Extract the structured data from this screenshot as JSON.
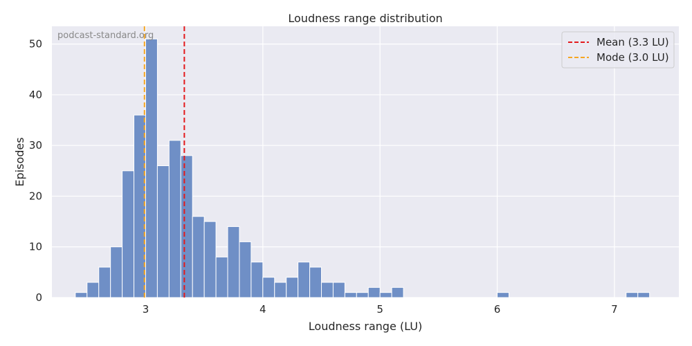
{
  "chart_data": {
    "type": "bar",
    "title": "Loudness range distribution",
    "xlabel": "Loudness range (LU)",
    "ylabel": "Episodes",
    "watermark": "podcast-standard.org",
    "xlim": [
      2.2,
      7.55
    ],
    "ylim": [
      0,
      53.5
    ],
    "xticks": [
      3,
      4,
      5,
      6,
      7
    ],
    "yticks": [
      0,
      10,
      20,
      30,
      40,
      50
    ],
    "grid": true,
    "legend_position": "top-right",
    "bin_width": 0.1,
    "bins": [
      {
        "x0": 2.4,
        "count": 1
      },
      {
        "x0": 2.5,
        "count": 3
      },
      {
        "x0": 2.6,
        "count": 6
      },
      {
        "x0": 2.7,
        "count": 10
      },
      {
        "x0": 2.8,
        "count": 25
      },
      {
        "x0": 2.9,
        "count": 36
      },
      {
        "x0": 3.0,
        "count": 51
      },
      {
        "x0": 3.1,
        "count": 26
      },
      {
        "x0": 3.2,
        "count": 31
      },
      {
        "x0": 3.3,
        "count": 28
      },
      {
        "x0": 3.4,
        "count": 16
      },
      {
        "x0": 3.5,
        "count": 15
      },
      {
        "x0": 3.6,
        "count": 8
      },
      {
        "x0": 3.7,
        "count": 14
      },
      {
        "x0": 3.8,
        "count": 11
      },
      {
        "x0": 3.9,
        "count": 7
      },
      {
        "x0": 4.0,
        "count": 4
      },
      {
        "x0": 4.1,
        "count": 3
      },
      {
        "x0": 4.2,
        "count": 4
      },
      {
        "x0": 4.3,
        "count": 7
      },
      {
        "x0": 4.4,
        "count": 6
      },
      {
        "x0": 4.5,
        "count": 3
      },
      {
        "x0": 4.6,
        "count": 3
      },
      {
        "x0": 4.7,
        "count": 1
      },
      {
        "x0": 4.8,
        "count": 1
      },
      {
        "x0": 4.9,
        "count": 2
      },
      {
        "x0": 5.0,
        "count": 1
      },
      {
        "x0": 5.1,
        "count": 2
      },
      {
        "x0": 6.0,
        "count": 1
      },
      {
        "x0": 7.1,
        "count": 1
      },
      {
        "x0": 7.2,
        "count": 1
      }
    ],
    "reference_lines": [
      {
        "label": "Mean (3.3 LU)",
        "x": 3.33,
        "color": "#e31a1c"
      },
      {
        "label": "Mode (3.0 LU)",
        "x": 2.99,
        "color": "#f5a623"
      }
    ],
    "colors": {
      "bar_fill": "#6f8fc6",
      "bar_stroke": "#ffffff",
      "background": "#eaeaf2",
      "grid": "#ffffff"
    }
  }
}
